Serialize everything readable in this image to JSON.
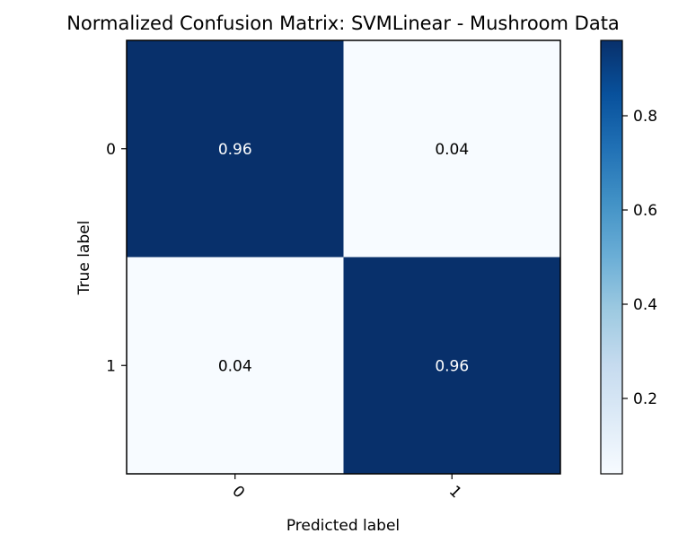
{
  "chart_data": {
    "type": "heatmap",
    "title": "Normalized Confusion Matrix: SVMLinear - Mushroom Data",
    "xlabel": "Predicted label",
    "ylabel": "True label",
    "x_categories": [
      "0",
      "1"
    ],
    "y_categories": [
      "0",
      "1"
    ],
    "values": [
      [
        0.96,
        0.04
      ],
      [
        0.04,
        0.96
      ]
    ],
    "cell_labels": [
      [
        "0.96",
        "0.04"
      ],
      [
        "0.04",
        "0.96"
      ]
    ],
    "colormap": "Blues",
    "colorbar": {
      "min": 0.04,
      "max": 0.96,
      "ticks": [
        0.2,
        0.4,
        0.6,
        0.8
      ],
      "tick_labels": [
        "0.2",
        "0.4",
        "0.6",
        "0.8"
      ]
    },
    "grid": false,
    "colors": {
      "dark": "#08306b",
      "light": "#f7fbff",
      "text_on_dark": "#ffffff",
      "text_on_light": "#000000"
    }
  }
}
